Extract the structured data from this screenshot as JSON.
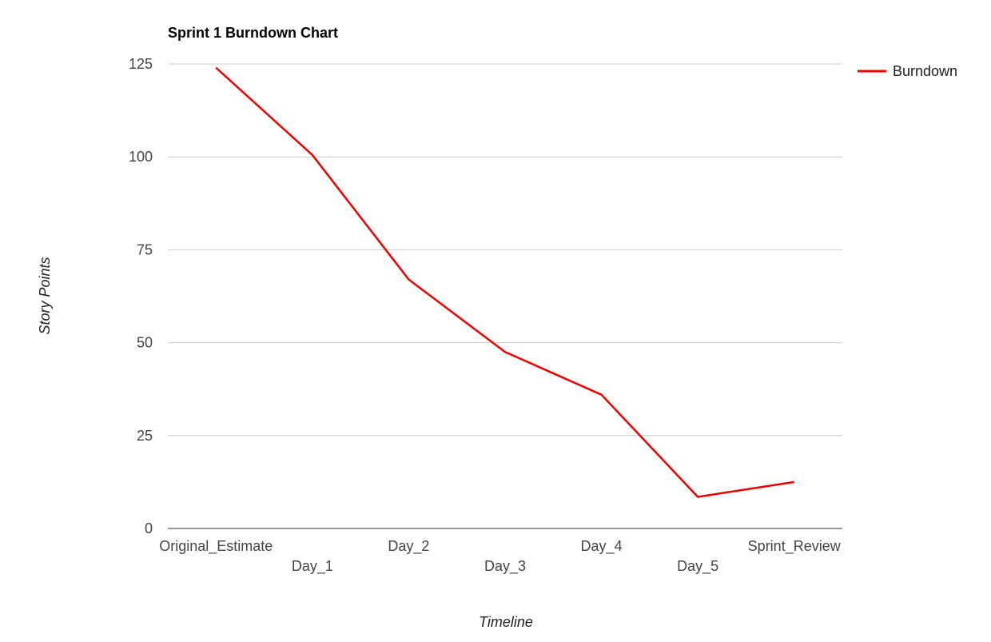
{
  "chart_data": {
    "type": "line",
    "title": "Sprint 1 Burndown Chart",
    "xlabel": "Timeline",
    "ylabel": "Story Points",
    "categories": [
      "Original_Estimate",
      "Day_1",
      "Day_2",
      "Day_3",
      "Day_4",
      "Day_5",
      "Sprint_Review"
    ],
    "series": [
      {
        "name": "Burndown",
        "color": "#ee0000",
        "values": [
          124,
          100.5,
          67,
          47.5,
          36,
          8.5,
          12.5
        ]
      }
    ],
    "ylim": [
      0,
      125
    ],
    "yticks": [
      "0",
      "25",
      "50",
      "75",
      "100",
      "125"
    ],
    "grid": true,
    "legend": "right"
  }
}
